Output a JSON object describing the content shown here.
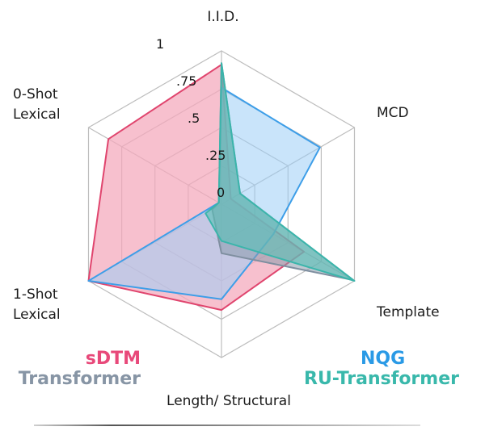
{
  "chart_data": {
    "type": "radar",
    "axes": [
      "I.I.D.",
      "MCD",
      "Template",
      "Length/ Structural",
      "1-Shot Lexical",
      "0-Shot Lexical"
    ],
    "axis_label_lines": [
      [
        "I.I.D."
      ],
      [
        "MCD"
      ],
      [
        "Template"
      ],
      [
        "Length/ Structural"
      ],
      [
        "1-Shot",
        "Lexical"
      ],
      [
        "0-Shot",
        "Lexical"
      ]
    ],
    "rlim": [
      0,
      1
    ],
    "ticks": [
      "0",
      ".25",
      ".5",
      ".75",
      "1"
    ],
    "grid": true,
    "series": [
      {
        "name": "sDTM",
        "values": [
          0.91,
          0.07,
          0.62,
          0.69,
          1.0,
          0.85
        ],
        "color": "#e0456e",
        "fill": "#f4a8bb"
      },
      {
        "name": "Transformer",
        "values": [
          0.92,
          0.14,
          0.99,
          0.32,
          0.07,
          0.02
        ],
        "color": "#7f8fa0",
        "fill": "#8a9aab"
      },
      {
        "name": "NQG",
        "values": [
          0.76,
          0.74,
          0.39,
          0.62,
          1.0,
          0.02
        ],
        "color": "#3d9ee8",
        "fill": "#9ccdf5"
      },
      {
        "name": "RU-Transformer",
        "values": [
          0.92,
          0.14,
          1.0,
          0.24,
          0.12,
          0.02
        ],
        "color": "#3bb5ab",
        "fill": "#56bfb5"
      }
    ],
    "legend": {
      "left": [
        {
          "label": "sDTM",
          "color": "#e8497a"
        },
        {
          "label": "Transformer",
          "color": "#8795a5"
        }
      ],
      "right": [
        {
          "label": "NQG",
          "color": "#2a9ae6"
        },
        {
          "label": "RU-Transformer",
          "color": "#39b8ab"
        }
      ]
    }
  }
}
